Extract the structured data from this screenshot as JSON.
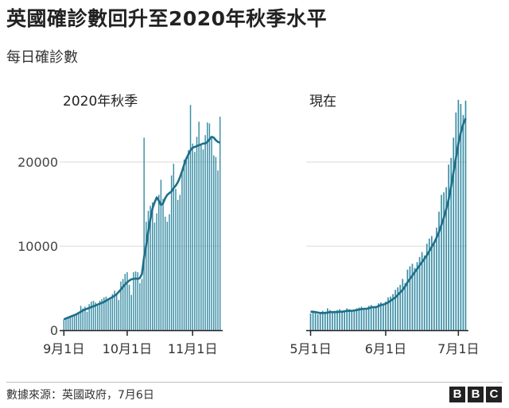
{
  "title": "英國確診數回升至2020年秋季水平",
  "subtitle": "每日確診數",
  "source": "數據來源：英國政府，7月6日",
  "brand": [
    "B",
    "B",
    "C"
  ],
  "colors": {
    "bar": "#3b8ea5",
    "line": "#1d6f8a",
    "grid": "#d9d9d9",
    "axis": "#222222"
  },
  "chart_data": [
    {
      "type": "bar",
      "title": "2020年秋季",
      "ylim": [
        0,
        27000
      ],
      "yticks": [
        0,
        10000,
        20000
      ],
      "ytick_labels": [
        "0",
        "10000",
        "20000"
      ],
      "xtick_labels": [
        "9月1日",
        "10月1日",
        "11月1日"
      ],
      "xtick_index": [
        0,
        30,
        61
      ],
      "values": [
        1300,
        1400,
        1500,
        1600,
        1700,
        1800,
        1900,
        2100,
        2900,
        2600,
        2800,
        2200,
        3100,
        3400,
        3500,
        3300,
        2900,
        3500,
        3700,
        3900,
        4000,
        3800,
        3900,
        4300,
        4700,
        4200,
        3600,
        5800,
        6100,
        6700,
        6900,
        5400,
        4200,
        6900,
        7000,
        6900,
        5600,
        6100,
        22900,
        12900,
        14200,
        14800,
        15200,
        12800,
        13900,
        16100,
        17900,
        15600,
        13500,
        12900,
        13800,
        18400,
        19800,
        16800,
        15500,
        16100,
        19100,
        20300,
        20500,
        21400,
        26800,
        22200,
        21200,
        23000,
        24800,
        22100,
        21500,
        23200,
        24700,
        24600,
        22800,
        20800,
        20600,
        19000,
        25400
      ],
      "average": [
        1300,
        1400,
        1500,
        1600,
        1700,
        1800,
        1900,
        2050,
        2200,
        2350,
        2450,
        2550,
        2650,
        2750,
        2850,
        2950,
        3050,
        3150,
        3250,
        3350,
        3500,
        3650,
        3800,
        3950,
        4100,
        4300,
        4550,
        4850,
        5150,
        5450,
        5700,
        5900,
        6050,
        6100,
        6150,
        6100,
        6200,
        6700,
        8700,
        10100,
        11800,
        13200,
        14500,
        15200,
        15800,
        15400,
        14900,
        15100,
        15700,
        16100,
        16300,
        16500,
        16900,
        17200,
        17600,
        18200,
        18900,
        19700,
        20400,
        20900,
        21400,
        21700,
        21800,
        21900,
        22000,
        22100,
        22200,
        22200,
        22400,
        22700,
        23000,
        22900,
        22600,
        22400,
        22300
      ]
    },
    {
      "type": "bar",
      "title": "現在",
      "ylim": [
        0,
        27000
      ],
      "xtick_labels": [
        "5月1日",
        "6月1日",
        "7月1日"
      ],
      "xtick_index": [
        0,
        31,
        61
      ],
      "values": [
        2000,
        2200,
        2100,
        1900,
        2100,
        2300,
        2200,
        2600,
        2400,
        2100,
        2300,
        2400,
        2500,
        2200,
        2300,
        2600,
        2500,
        2400,
        2300,
        2600,
        2700,
        2800,
        2600,
        2500,
        2900,
        3000,
        2800,
        2700,
        3200,
        3300,
        3100,
        3400,
        3900,
        4000,
        4300,
        4800,
        5100,
        5400,
        6100,
        5600,
        7200,
        7600,
        7900,
        7400,
        8100,
        8700,
        9300,
        8900,
        10300,
        10900,
        11200,
        10600,
        12200,
        14100,
        16100,
        16400,
        17000,
        19700,
        20500,
        22900,
        25900,
        27400,
        26900,
        25600,
        27300
      ],
      "average": [
        2200,
        2200,
        2150,
        2100,
        2050,
        2050,
        2050,
        2100,
        2150,
        2150,
        2150,
        2150,
        2200,
        2200,
        2250,
        2300,
        2300,
        2300,
        2350,
        2400,
        2450,
        2500,
        2550,
        2550,
        2600,
        2700,
        2750,
        2750,
        2850,
        3000,
        3050,
        3150,
        3300,
        3500,
        3700,
        3900,
        4200,
        4500,
        4800,
        5200,
        5700,
        6100,
        6500,
        6900,
        7300,
        7700,
        8100,
        8500,
        8900,
        9400,
        9900,
        10400,
        11000,
        11700,
        12500,
        13400,
        14400,
        15600,
        17100,
        18800,
        20500,
        22200,
        23500,
        24500,
        25200
      ]
    }
  ]
}
